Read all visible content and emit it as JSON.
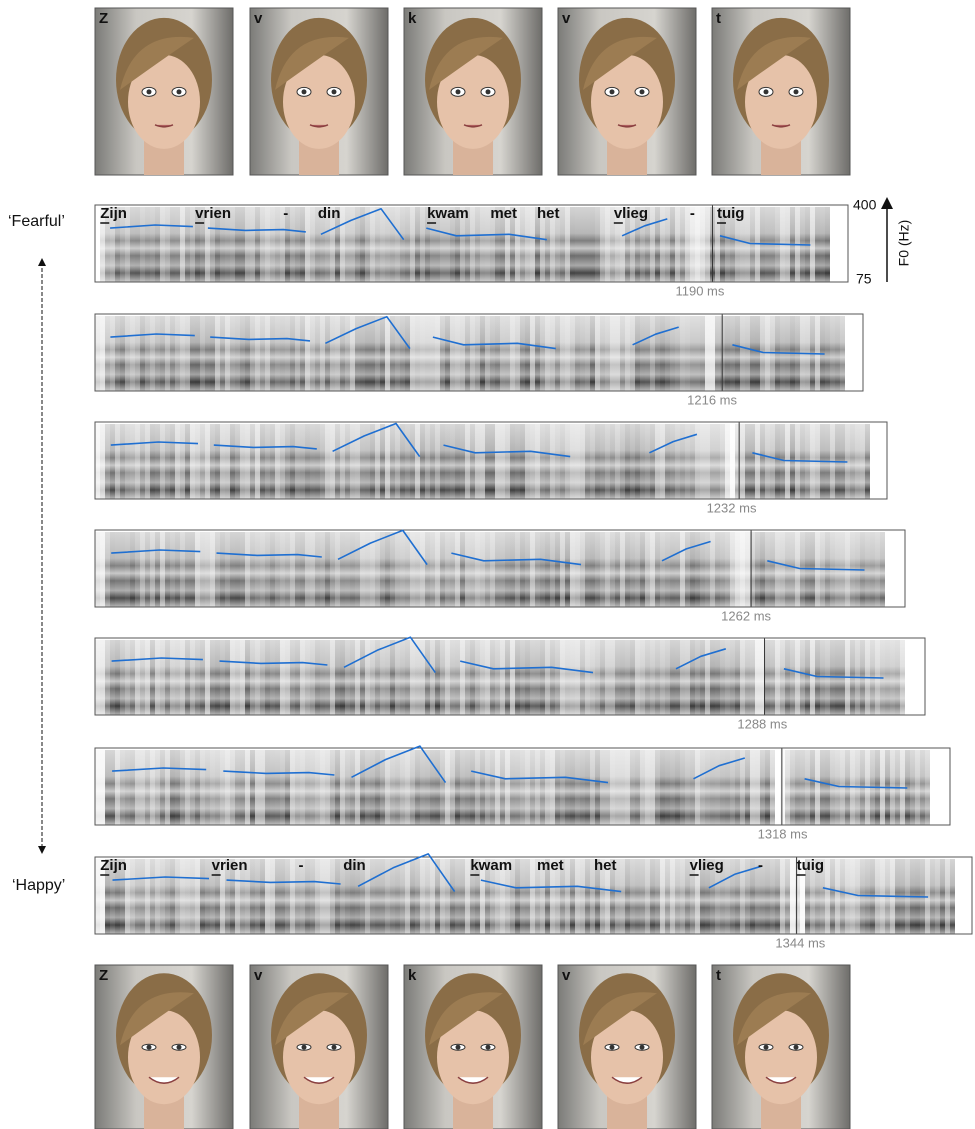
{
  "photos_top": [
    "Z",
    "v",
    "k",
    "v",
    "t"
  ],
  "photos_bottom": [
    "Z",
    "v",
    "k",
    "v",
    "t"
  ],
  "labels": {
    "fearful": "‘Fearful’",
    "happy": "‘Happy’"
  },
  "axis": {
    "top": "400",
    "bottom": "75",
    "title": "F0 (Hz)"
  },
  "panels": [
    {
      "duration": "1190 ms",
      "words": [
        "Zijn",
        "vrien",
        "-",
        "din",
        "kwam",
        "met",
        "het",
        "vlieg",
        "-",
        "tuig"
      ]
    },
    {
      "duration": "1216 ms"
    },
    {
      "duration": "1232 ms"
    },
    {
      "duration": "1262 ms"
    },
    {
      "duration": "1288 ms"
    },
    {
      "duration": "1318 ms"
    },
    {
      "duration": "1344 ms",
      "words": [
        "Zijn",
        "vrien",
        "-",
        "din",
        "kwam",
        "met",
        "het",
        "vlieg",
        "-",
        "tuig"
      ]
    }
  ]
}
